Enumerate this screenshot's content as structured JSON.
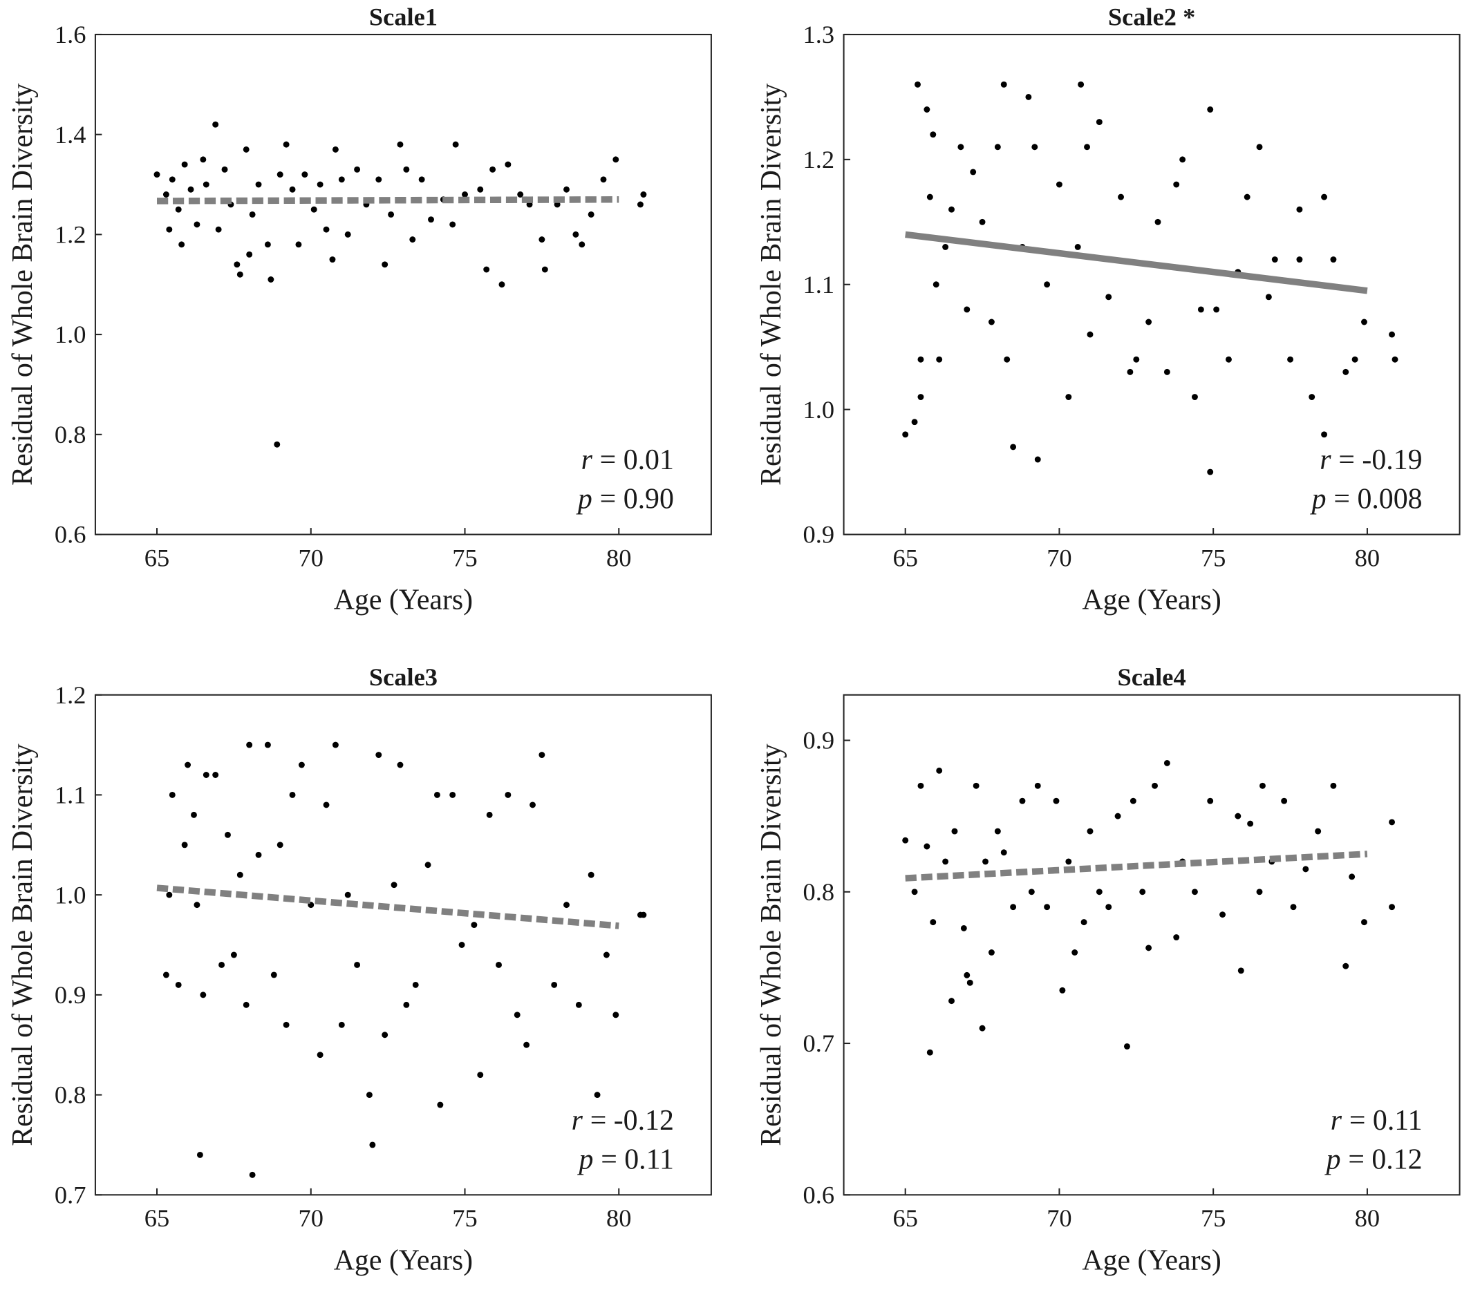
{
  "chart_data": [
    {
      "type": "scatter",
      "title": "Scale1",
      "xlabel": "Age (Years)",
      "ylabel": "Residual of Whole Brain Diversity",
      "color": "#000000",
      "xlim": [
        63,
        83
      ],
      "xticks": [
        65,
        70,
        75,
        80
      ],
      "ylim": [
        0.6,
        1.6
      ],
      "yticks": [
        0.6,
        0.8,
        {
          "value": 1,
          "label": "1.0"
        },
        1.2,
        1.4,
        1.6
      ],
      "x": [
        65,
        65.3,
        65.4,
        65.5,
        65.7,
        65.8,
        65.9,
        66.1,
        66.3,
        66.5,
        66.6,
        66.9,
        67,
        67.2,
        67.4,
        67.6,
        67.7,
        67.9,
        68,
        68.1,
        68.3,
        68.6,
        68.7,
        68.9,
        69,
        69.2,
        69.4,
        69.6,
        69.8,
        70.1,
        70.3,
        70.5,
        70.7,
        70.8,
        71,
        71.2,
        71.5,
        71.8,
        72.2,
        72.4,
        72.6,
        72.9,
        73.1,
        73.3,
        73.6,
        73.9,
        74.3,
        74.6,
        74.7,
        75,
        75.5,
        75.7,
        75.9,
        76.2,
        76.4,
        76.8,
        77.1,
        77.5,
        77.6,
        78,
        78.3,
        78.6,
        78.8,
        79.1,
        79.5,
        79.9,
        80.7,
        80.8
      ],
      "values": [
        1.32,
        1.28,
        1.21,
        1.31,
        1.25,
        1.18,
        1.34,
        1.29,
        1.22,
        1.35,
        1.3,
        1.42,
        1.21,
        1.33,
        1.26,
        1.14,
        1.12,
        1.37,
        1.16,
        1.24,
        1.3,
        1.18,
        1.11,
        0.78,
        1.32,
        1.38,
        1.29,
        1.18,
        1.32,
        1.25,
        1.3,
        1.21,
        1.15,
        1.37,
        1.31,
        1.2,
        1.33,
        1.26,
        1.31,
        1.14,
        1.24,
        1.38,
        1.33,
        1.19,
        1.31,
        1.23,
        1.27,
        1.22,
        1.38,
        1.28,
        1.29,
        1.13,
        1.33,
        1.1,
        1.34,
        1.28,
        1.26,
        1.19,
        1.13,
        1.26,
        1.29,
        1.2,
        1.18,
        1.24,
        1.31,
        1.35,
        1.26,
        1.28
      ],
      "fit": {
        "x": [
          65,
          80
        ],
        "values": [
          1.267,
          1.27
        ],
        "color": "#808080",
        "style": "dashed"
      },
      "stats": [
        {
          "symbol": "r",
          "text": "= 0.01"
        },
        {
          "symbol": "p",
          "text": "= 0.90"
        }
      ]
    },
    {
      "type": "scatter",
      "title": "Scale2 *",
      "xlabel": "Age (Years)",
      "ylabel": "Residual of Whole Brain Diversity",
      "color": "#000000",
      "xlim": [
        63,
        83
      ],
      "xticks": [
        65,
        70,
        75,
        80
      ],
      "ylim": [
        0.9,
        1.3
      ],
      "yticks": [
        0.9,
        {
          "value": 1,
          "label": "1.0"
        },
        1.1,
        1.2,
        1.3
      ],
      "x": [
        65,
        65.3,
        65.4,
        65.5,
        65.5,
        65.7,
        65.8,
        65.9,
        66,
        66.1,
        66.3,
        66.5,
        66.8,
        67,
        67.2,
        67.5,
        67.8,
        68,
        68.2,
        68.3,
        68.5,
        68.8,
        69,
        69.2,
        69.3,
        69.6,
        70,
        70.3,
        70.6,
        70.7,
        70.9,
        71,
        71.3,
        71.6,
        72,
        72.3,
        72.5,
        72.9,
        73.2,
        73.5,
        73.8,
        74,
        74.4,
        74.6,
        74.9,
        74.9,
        75.1,
        75.5,
        75.8,
        76.1,
        76.5,
        76.8,
        77,
        77.5,
        77.8,
        78.2,
        78.6,
        78.9,
        79.3,
        79.6,
        79.9,
        80.8,
        80.9,
        77.8,
        78.6
      ],
      "values": [
        0.98,
        0.99,
        1.26,
        1.01,
        1.04,
        1.24,
        1.17,
        1.22,
        1.1,
        1.04,
        1.13,
        1.16,
        1.21,
        1.08,
        1.19,
        1.15,
        1.07,
        1.21,
        1.26,
        1.04,
        0.97,
        1.13,
        1.25,
        1.21,
        0.96,
        1.1,
        1.18,
        1.01,
        1.13,
        1.26,
        1.21,
        1.06,
        1.23,
        1.09,
        1.17,
        1.03,
        1.04,
        1.07,
        1.15,
        1.03,
        1.18,
        1.2,
        1.01,
        1.08,
        1.24,
        0.95,
        1.08,
        1.04,
        1.11,
        1.17,
        1.21,
        1.09,
        1.12,
        1.04,
        1.12,
        1.01,
        0.98,
        1.12,
        1.03,
        1.04,
        1.07,
        1.06,
        1.04,
        1.16,
        1.17
      ],
      "fit": {
        "x": [
          65,
          80
        ],
        "values": [
          1.14,
          1.095
        ],
        "color": "#808080",
        "style": "solid"
      },
      "stats": [
        {
          "symbol": "r",
          "text": "= -0.19"
        },
        {
          "symbol": "p",
          "text": "= 0.008"
        }
      ]
    },
    {
      "type": "scatter",
      "title": "Scale3",
      "xlabel": "Age (Years)",
      "ylabel": "Residual of Whole Brain Diversity",
      "color": "#000000",
      "xlim": [
        63,
        83
      ],
      "xticks": [
        65,
        70,
        75,
        80
      ],
      "ylim": [
        0.7,
        1.2
      ],
      "yticks": [
        0.7,
        0.8,
        0.9,
        {
          "value": 1,
          "label": "1.0"
        },
        1.1,
        1.2
      ],
      "x": [
        65.3,
        65.4,
        65.5,
        65.7,
        65.9,
        66,
        66.2,
        66.3,
        66.4,
        66.5,
        66.6,
        66.9,
        67.1,
        67.3,
        67.5,
        67.7,
        67.9,
        68,
        68.1,
        68.3,
        68.6,
        68.8,
        69,
        69.2,
        69.4,
        69.7,
        70,
        70.3,
        70.5,
        70.8,
        71,
        71.2,
        71.5,
        71.9,
        72,
        72.2,
        72.4,
        72.7,
        72.9,
        73.1,
        73.4,
        73.8,
        74.1,
        74.2,
        74.6,
        74.9,
        75.3,
        75.5,
        75.8,
        76.1,
        76.4,
        76.7,
        77,
        77.2,
        77.5,
        77.9,
        78.3,
        78.7,
        79.1,
        79.3,
        79.6,
        79.9,
        80.7,
        80.8
      ],
      "values": [
        0.92,
        1,
        1.1,
        0.91,
        1.05,
        1.13,
        1.08,
        0.99,
        0.74,
        0.9,
        1.12,
        1.12,
        0.93,
        1.06,
        0.94,
        1.02,
        0.89,
        1.15,
        0.72,
        1.04,
        1.15,
        0.92,
        1.05,
        0.87,
        1.1,
        1.13,
        0.99,
        0.84,
        1.09,
        1.15,
        0.87,
        1,
        0.93,
        0.8,
        0.75,
        1.14,
        0.86,
        1.01,
        1.13,
        0.89,
        0.91,
        1.03,
        1.1,
        0.79,
        1.1,
        0.95,
        0.97,
        0.82,
        1.08,
        0.93,
        1.1,
        0.88,
        0.85,
        1.09,
        1.14,
        0.91,
        0.99,
        0.89,
        1.02,
        0.8,
        0.94,
        0.88,
        0.98,
        0.98
      ],
      "fit": {
        "x": [
          65,
          80
        ],
        "values": [
          1.007,
          0.969
        ],
        "color": "#808080",
        "style": "dashed"
      },
      "stats": [
        {
          "symbol": "r",
          "text": "= -0.12"
        },
        {
          "symbol": "p",
          "text": "= 0.11"
        }
      ]
    },
    {
      "type": "scatter",
      "title": "Scale4",
      "xlabel": "Age (Years)",
      "ylabel": "Residual of Whole Brain Diversity",
      "color": "#000000",
      "xlim": [
        63,
        83
      ],
      "xticks": [
        65,
        70,
        75,
        80
      ],
      "ylim": [
        0.6,
        0.93
      ],
      "yticks": [
        0.6,
        0.7,
        0.8,
        0.9
      ],
      "x": [
        65,
        65.3,
        65.5,
        65.7,
        65.8,
        65.9,
        66.1,
        66.3,
        66.5,
        66.6,
        66.9,
        67,
        67.1,
        67.3,
        67.5,
        67.6,
        67.8,
        68,
        68.2,
        68.5,
        68.8,
        69.1,
        69.3,
        69.6,
        69.9,
        70.1,
        70.3,
        70.5,
        70.8,
        71,
        71.3,
        71.6,
        71.9,
        72.2,
        72.4,
        72.7,
        72.9,
        73.1,
        73.5,
        73.8,
        74,
        74.4,
        74.9,
        75.3,
        75.8,
        75.9,
        76.2,
        76.5,
        76.6,
        76.9,
        77.3,
        77.6,
        78,
        78.4,
        78.9,
        79.3,
        79.5,
        79.9,
        80.8,
        80.8
      ],
      "values": [
        0.834,
        0.8,
        0.87,
        0.83,
        0.694,
        0.78,
        0.88,
        0.82,
        0.728,
        0.84,
        0.776,
        0.745,
        0.74,
        0.87,
        0.71,
        0.82,
        0.76,
        0.84,
        0.826,
        0.79,
        0.86,
        0.8,
        0.87,
        0.79,
        0.86,
        0.735,
        0.82,
        0.76,
        0.78,
        0.84,
        0.8,
        0.79,
        0.85,
        0.698,
        0.86,
        0.8,
        0.763,
        0.87,
        0.885,
        0.77,
        0.82,
        0.8,
        0.86,
        0.785,
        0.85,
        0.748,
        0.845,
        0.8,
        0.87,
        0.82,
        0.86,
        0.79,
        0.815,
        0.84,
        0.87,
        0.751,
        0.81,
        0.78,
        0.79,
        0.846
      ],
      "fit": {
        "x": [
          65,
          80
        ],
        "values": [
          0.809,
          0.825
        ],
        "color": "#808080",
        "style": "dashed"
      },
      "stats": [
        {
          "symbol": "r",
          "text": "= 0.11"
        },
        {
          "symbol": "p",
          "text": "= 0.12"
        }
      ]
    }
  ]
}
